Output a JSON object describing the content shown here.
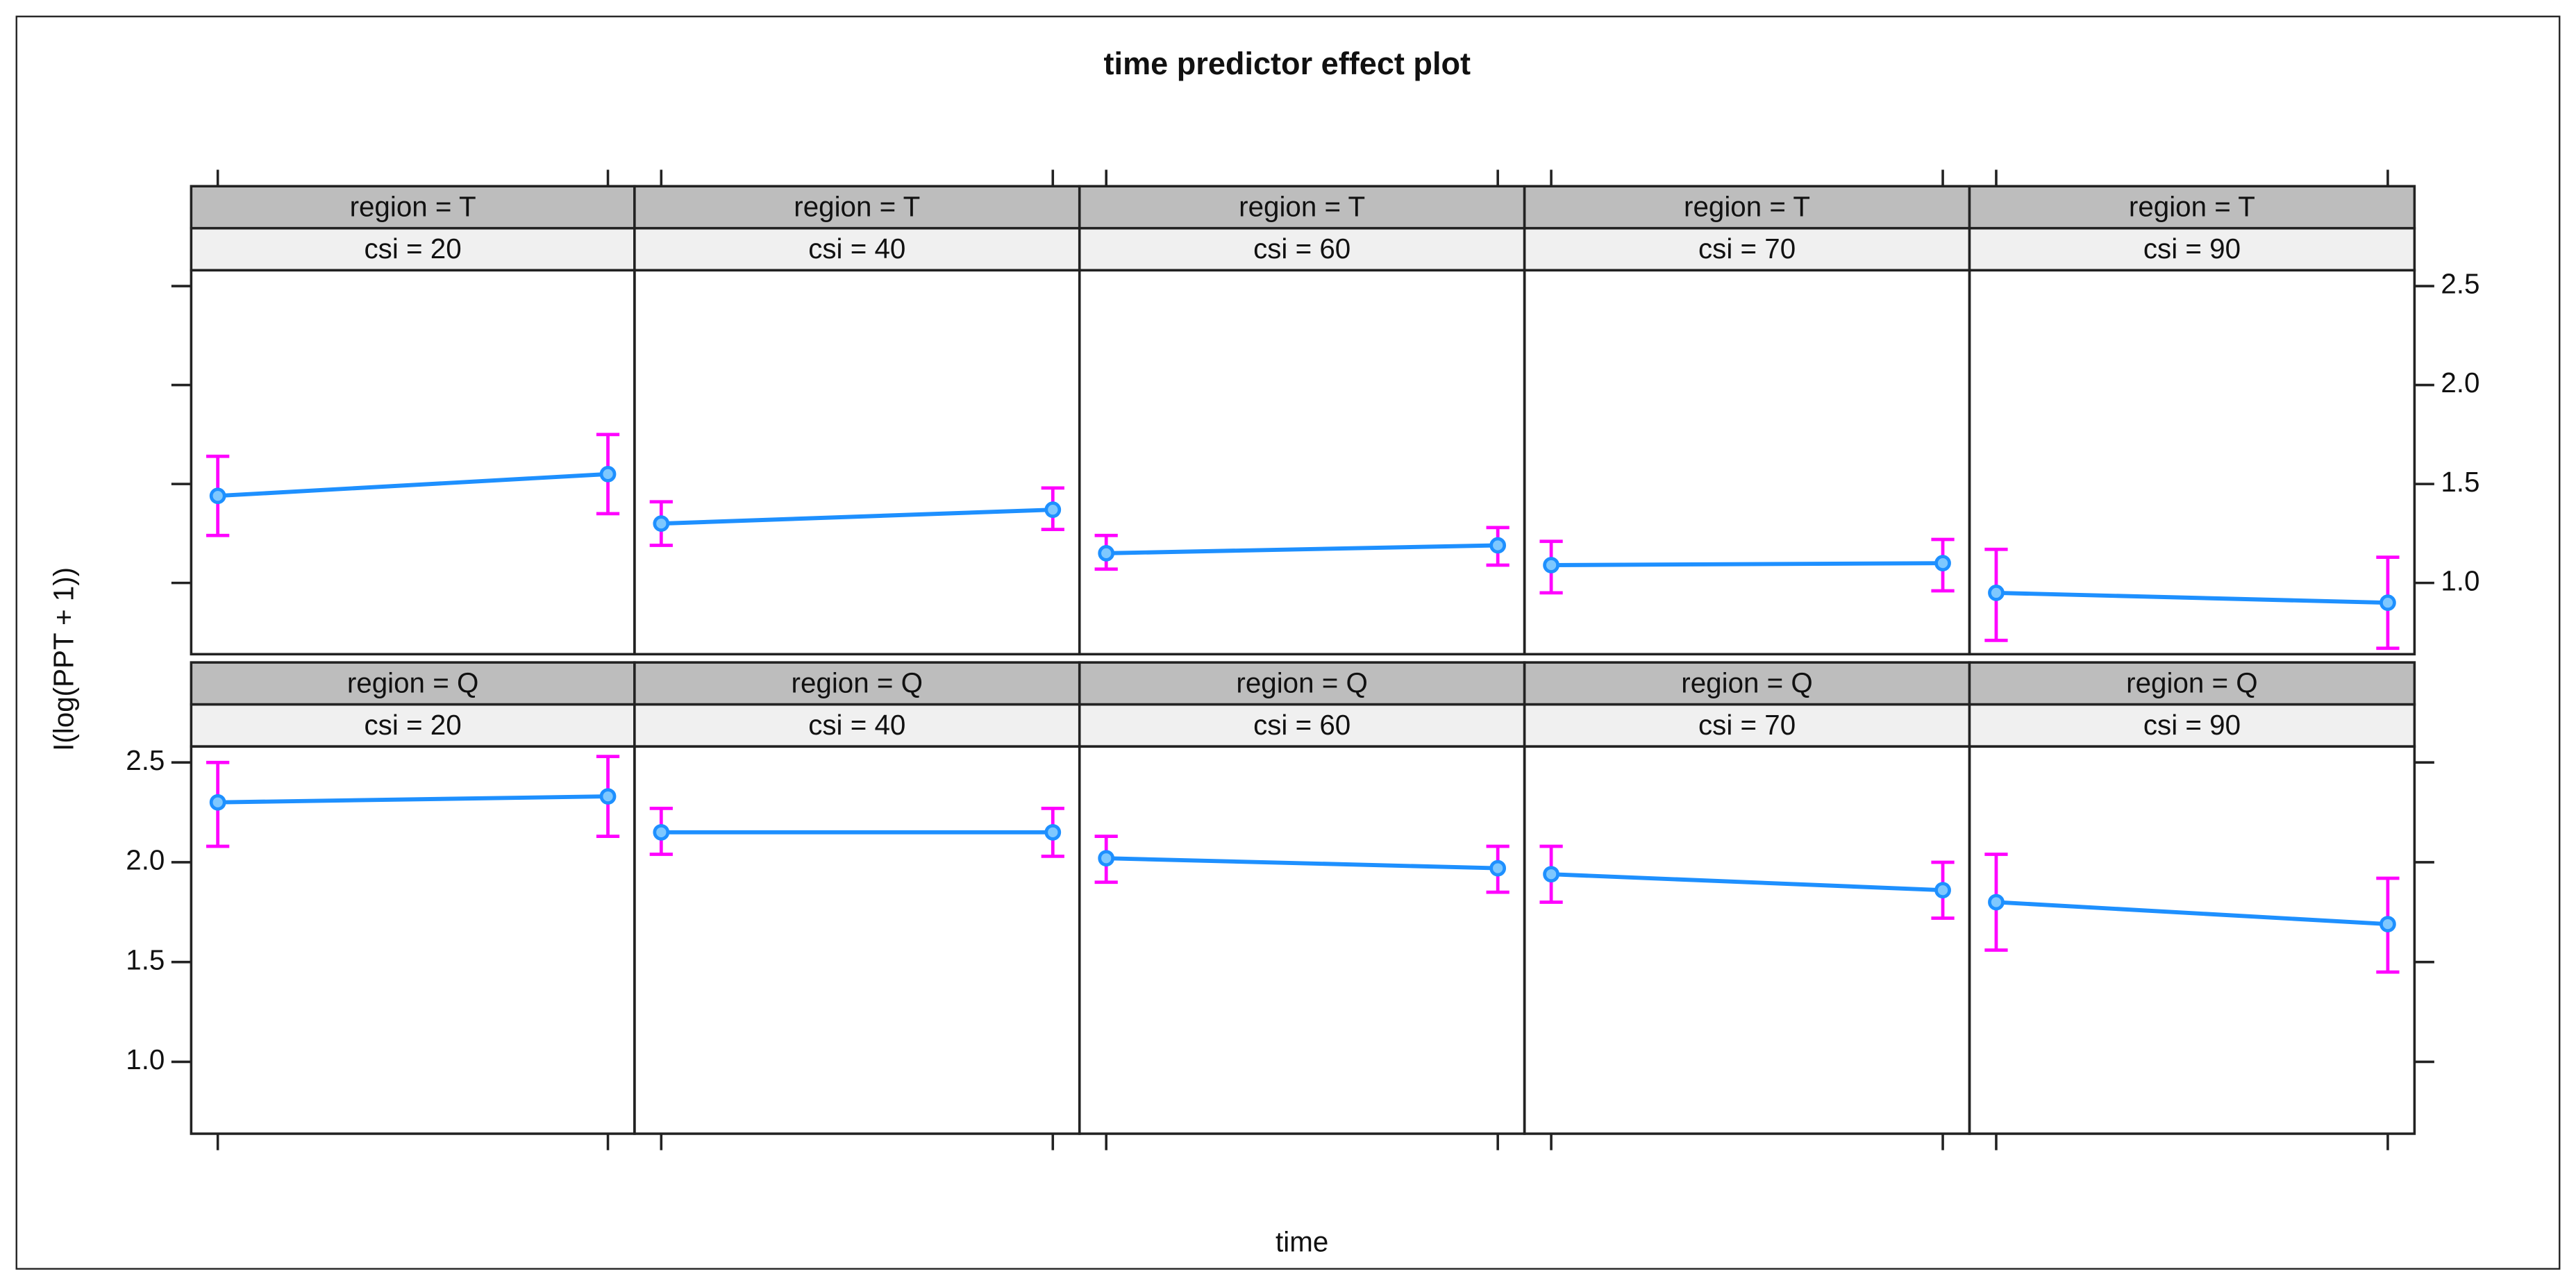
{
  "chart_data": {
    "type": "line",
    "title": "time predictor effect plot",
    "xlabel": "time",
    "ylabel": "I(log(PPT + 1))",
    "categories": [
      null,
      null
    ],
    "ylim": [
      0.64,
      2.58
    ],
    "yticks": [
      {
        "value": 1,
        "label": "1.0"
      },
      1.5,
      {
        "value": 2,
        "label": "2.0"
      },
      2.5
    ],
    "line_color": "#1e90ff",
    "error_color": "#ff00ff",
    "panels": [
      {
        "strips": [
          "region = T",
          "csi = 20"
        ],
        "values": [
          1.44,
          1.55
        ],
        "lower": [
          1.24,
          1.35
        ],
        "upper": [
          1.64,
          1.75
        ]
      },
      {
        "strips": [
          "region = T",
          "csi = 40"
        ],
        "values": [
          1.3,
          1.37
        ],
        "lower": [
          1.19,
          1.27
        ],
        "upper": [
          1.41,
          1.48
        ]
      },
      {
        "strips": [
          "region = T",
          "csi = 60"
        ],
        "values": [
          1.15,
          1.19
        ],
        "lower": [
          1.07,
          1.09
        ],
        "upper": [
          1.24,
          1.28
        ]
      },
      {
        "strips": [
          "region = T",
          "csi = 70"
        ],
        "values": [
          1.09,
          1.1
        ],
        "lower": [
          0.95,
          0.96
        ],
        "upper": [
          1.21,
          1.22
        ]
      },
      {
        "strips": [
          "region = T",
          "csi = 90"
        ],
        "values": [
          0.95,
          0.9
        ],
        "lower": [
          0.71,
          0.67
        ],
        "upper": [
          1.17,
          1.13
        ]
      },
      {
        "strips": [
          "region = Q",
          "csi = 20"
        ],
        "values": [
          2.3,
          2.33
        ],
        "lower": [
          2.08,
          2.13
        ],
        "upper": [
          2.5,
          2.53
        ]
      },
      {
        "strips": [
          "region = Q",
          "csi = 40"
        ],
        "values": [
          2.15,
          2.15
        ],
        "lower": [
          2.04,
          2.03
        ],
        "upper": [
          2.27,
          2.27
        ]
      },
      {
        "strips": [
          "region = Q",
          "csi = 60"
        ],
        "values": [
          2.02,
          1.97
        ],
        "lower": [
          1.9,
          1.85
        ],
        "upper": [
          2.13,
          2.08
        ]
      },
      {
        "strips": [
          "region = Q",
          "csi = 70"
        ],
        "values": [
          1.94,
          1.86
        ],
        "lower": [
          1.8,
          1.72
        ],
        "upper": [
          2.08,
          2.0
        ]
      },
      {
        "strips": [
          "region = Q",
          "csi = 90"
        ],
        "values": [
          1.8,
          1.69
        ],
        "lower": [
          1.56,
          1.45
        ],
        "upper": [
          2.04,
          1.92
        ]
      }
    ]
  }
}
